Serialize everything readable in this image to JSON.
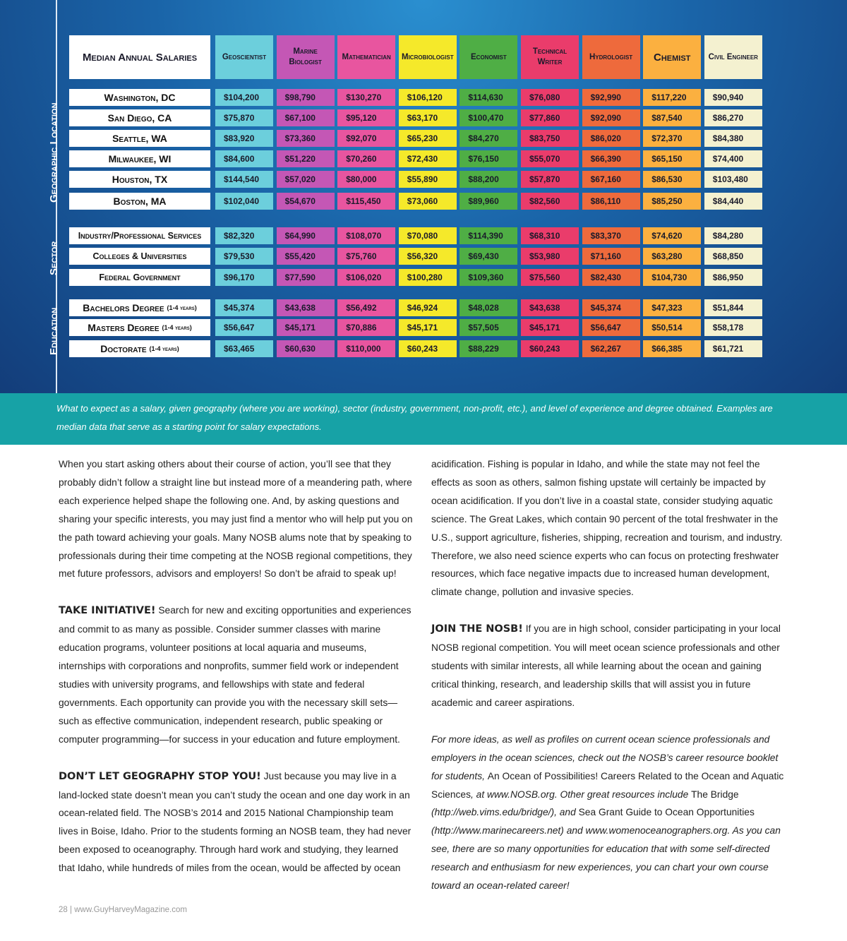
{
  "table": {
    "title": "Median Annual Salaries",
    "columns": [
      {
        "label": "Geoscientist",
        "color": "#6ccfdc"
      },
      {
        "label": "Marine Biologist",
        "color": "#c457b5"
      },
      {
        "label": "Mathematician",
        "color": "#e8559f"
      },
      {
        "label": "Microbiologist",
        "color": "#f5e92a"
      },
      {
        "label": "Economist",
        "color": "#4fae45"
      },
      {
        "label": "Technical Writer",
        "color": "#ea3c6b"
      },
      {
        "label": "Hydrologist",
        "color": "#ee6a3c"
      },
      {
        "label": "Chemist",
        "color": "#fbb040"
      },
      {
        "label": "Civil Engineer",
        "color": "#f4f1d0"
      }
    ],
    "groups": [
      {
        "label": "Geographic Location",
        "rows": [
          {
            "label": "Washington, DC",
            "values": [
              "$104,200",
              "$98,790",
              "$130,270",
              "$106,120",
              "$114,630",
              "$76,080",
              "$92,990",
              "$117,220",
              "$90,940"
            ]
          },
          {
            "label": "San Diego, CA",
            "values": [
              "$75,870",
              "$67,100",
              "$95,120",
              "$63,170",
              "$100,470",
              "$77,860",
              "$92,090",
              "$87,540",
              "$86,270"
            ]
          },
          {
            "label": "Seattle, WA",
            "values": [
              "$83,920",
              "$73,360",
              "$92,070",
              "$65,230",
              "$84,270",
              "$83,750",
              "$86,020",
              "$72,370",
              "$84,380"
            ]
          },
          {
            "label": "Milwaukee, WI",
            "values": [
              "$84,600",
              "$51,220",
              "$70,260",
              "$72,430",
              "$76,150",
              "$55,070",
              "$66,390",
              "$65,150",
              "$74,400"
            ]
          },
          {
            "label": "Houston, TX",
            "values": [
              "$144,540",
              "$57,020",
              "$80,000",
              "$55,890",
              "$88,200",
              "$57,870",
              "$67,160",
              "$86,530",
              "$103,480"
            ]
          },
          {
            "label": "Boston, MA",
            "values": [
              "$102,040",
              "$54,670",
              "$115,450",
              "$73,060",
              "$89,960",
              "$82,560",
              "$86,110",
              "$85,250",
              "$84,440"
            ]
          }
        ]
      },
      {
        "label": "Sector",
        "rows": [
          {
            "label": "Industry/Professional Services",
            "values": [
              "$82,320",
              "$64,990",
              "$108,070",
              "$70,080",
              "$114,390",
              "$68,310",
              "$83,370",
              "$74,620",
              "$84,280"
            ]
          },
          {
            "label": "Colleges & Universities",
            "values": [
              "$79,530",
              "$55,420",
              "$75,760",
              "$56,320",
              "$69,430",
              "$53,980",
              "$71,160",
              "$63,280",
              "$68,850"
            ]
          },
          {
            "label": "Federal Government",
            "values": [
              "$96,170",
              "$77,590",
              "$106,020",
              "$100,280",
              "$109,360",
              "$75,560",
              "$82,430",
              "$104,730",
              "$86,950"
            ]
          }
        ]
      },
      {
        "label": "Education",
        "rows": [
          {
            "label": "Bachelors Degree",
            "note": "(1-4 years)",
            "values": [
              "$45,374",
              "$43,638",
              "$56,492",
              "$46,924",
              "$48,028",
              "$43,638",
              "$45,374",
              "$47,323",
              "$51,844"
            ]
          },
          {
            "label": "Masters Degree",
            "note": "(1-4 years)",
            "values": [
              "$56,647",
              "$45,171",
              "$70,886",
              "$45,171",
              "$57,505",
              "$45,171",
              "$56,647",
              "$50,514",
              "$58,178"
            ]
          },
          {
            "label": "Doctorate",
            "note": "(1-4 years)",
            "values": [
              "$63,465",
              "$60,630",
              "$110,000",
              "$60,243",
              "$88,229",
              "$60,243",
              "$62,267",
              "$66,385",
              "$61,721"
            ]
          }
        ]
      }
    ]
  },
  "caption": "What to expect as a salary, given geography (where you are working), sector (industry, government, non-profit, etc.), and level of experience and degree obtained. Examples are median data that serve as a starting point for salary expectations.",
  "left_column": [
    [
      {
        "t": "When you start asking others about their course of action, you’ll see that they probably didn’t follow a straight line but instead more of a meandering path, where each experience helped shape the following one. And, by asking questions and sharing your specific interests, you may just find a mentor who will help put you on the path toward achieving your goals. Many NOSB alums note that by speaking to professionals during their time competing at the NOSB regional competitions, they met future professors, advisors and employers! So don’t be afraid to speak up!"
      }
    ],
    [
      {
        "t": "TAKE INITIATIVE!",
        "s": "h"
      },
      {
        "t": " Search for new and exciting opportunities and experiences and commit to as many as possible. Consider summer classes with marine education programs, volunteer positions at local aquaria and museums, internships with corporations and nonprofits, summer field work or independent studies with university programs, and fellowships with state and federal governments. Each opportunity can provide you with the necessary skill sets—such as effective communication, independent research, public speaking or computer programming—for success in your education and future employment."
      }
    ],
    [
      {
        "t": "DON’T LET GEOGRAPHY STOP YOU!",
        "s": "h"
      },
      {
        "t": " Just because you may live in a land-locked state doesn’t mean you can’t study the ocean and one day work in an ocean-related field. The NOSB’s 2014 and 2015 National Championship team lives in Boise, Idaho. Prior to the students forming an NOSB team, they had never been exposed to oceanography. Through hard work and studying, they learned that Idaho, while hundreds of miles from the ocean, would be affected by ocean"
      }
    ]
  ],
  "right_column": [
    [
      {
        "t": "acidification. Fishing is popular in Idaho, and while the state may not feel the effects as soon as others, salmon fishing upstate will certainly be impacted by ocean acidification. If you don’t live in a coastal state, consider studying aquatic science. The Great Lakes, which contain 90 percent of the total freshwater in the U.S., support agriculture, fisheries, shipping, recreation and tourism, and industry. Therefore, we also need science experts who can focus on protecting freshwater resources, which face negative impacts due to increased human development, climate change, pollution and invasive species."
      }
    ],
    [
      {
        "t": "JOIN THE NOSB!",
        "s": "h"
      },
      {
        "t": " If you are in high school, consider participating in your local NOSB regional competition. You will meet ocean science professionals and other students with similar interests, all while learning about the ocean and gaining critical thinking, research, and leadership skills that will assist you in future academic and career aspirations."
      }
    ],
    [
      {
        "t": "For more ideas, as well as profiles on current ocean science professionals and employers in the ocean sciences, check out the NOSB’s career resource booklet for students, ",
        "s": "i"
      },
      {
        "t": "An Ocean of Possibilities! Careers Related to the Ocean and Aquatic Sciences"
      },
      {
        "t": ", at www.NOSB.org. Other great resources include ",
        "s": "i"
      },
      {
        "t": "The Bridge"
      },
      {
        "t": " (http://web.vims.edu/bridge/), and ",
        "s": "i"
      },
      {
        "t": "Sea Grant Guide to Ocean Opportunities"
      },
      {
        "t": " (http://www.marinecareers.net) and www.womenoceanographers.org. As you can see, there are so many opportunities for education that with some self-directed research and enthusiasm for new experiences, you can chart your own course toward an ocean-related career!",
        "s": "i"
      }
    ]
  ],
  "footer": {
    "page": "28",
    "separator": "|",
    "site": "www.GuyHarveyMagazine.com"
  }
}
